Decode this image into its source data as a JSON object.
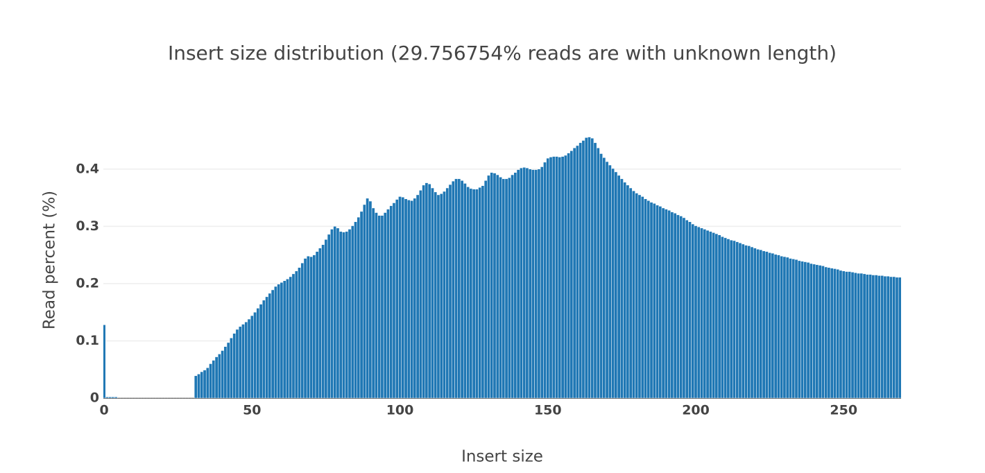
{
  "chart_data": {
    "type": "bar",
    "title": "Insert size distribution (29.756754% reads are with unknown length)",
    "x_label": "Insert size",
    "y_label": "Read percent (%)",
    "color": "#1f77b4",
    "grid": true,
    "xlim": [
      -0.25,
      269.4
    ],
    "ylim": [
      0,
      0.47
    ],
    "xticks": [
      0,
      50,
      100,
      150,
      200,
      250
    ],
    "yticks": [
      0,
      0.1,
      0.2,
      0.3,
      0.4
    ],
    "x": [
      0,
      1,
      2,
      3,
      4,
      5,
      6,
      7,
      8,
      9,
      10,
      11,
      12,
      13,
      14,
      15,
      16,
      17,
      18,
      19,
      20,
      21,
      22,
      23,
      24,
      25,
      26,
      27,
      28,
      29,
      30,
      31,
      32,
      33,
      34,
      35,
      36,
      37,
      38,
      39,
      40,
      41,
      42,
      43,
      44,
      45,
      46,
      47,
      48,
      49,
      50,
      51,
      52,
      53,
      54,
      55,
      56,
      57,
      58,
      59,
      60,
      61,
      62,
      63,
      64,
      65,
      66,
      67,
      68,
      69,
      70,
      71,
      72,
      73,
      74,
      75,
      76,
      77,
      78,
      79,
      80,
      81,
      82,
      83,
      84,
      85,
      86,
      87,
      88,
      89,
      90,
      91,
      92,
      93,
      94,
      95,
      96,
      97,
      98,
      99,
      100,
      101,
      102,
      103,
      104,
      105,
      106,
      107,
      108,
      109,
      110,
      111,
      112,
      113,
      114,
      115,
      116,
      117,
      118,
      119,
      120,
      121,
      122,
      123,
      124,
      125,
      126,
      127,
      128,
      129,
      130,
      131,
      132,
      133,
      134,
      135,
      136,
      137,
      138,
      139,
      140,
      141,
      142,
      143,
      144,
      145,
      146,
      147,
      148,
      149,
      150,
      151,
      152,
      153,
      154,
      155,
      156,
      157,
      158,
      159,
      160,
      161,
      162,
      163,
      164,
      165,
      166,
      167,
      168,
      169,
      170,
      171,
      172,
      173,
      174,
      175,
      176,
      177,
      178,
      179,
      180,
      181,
      182,
      183,
      184,
      185,
      186,
      187,
      188,
      189,
      190,
      191,
      192,
      193,
      194,
      195,
      196,
      197,
      198,
      199,
      200,
      201,
      202,
      203,
      204,
      205,
      206,
      207,
      208,
      209,
      210,
      211,
      212,
      213,
      214,
      215,
      216,
      217,
      218,
      219,
      220,
      221,
      222,
      223,
      224,
      225,
      226,
      227,
      228,
      229,
      230,
      231,
      232,
      233,
      234,
      235,
      236,
      237,
      238,
      239,
      240,
      241,
      242,
      243,
      244,
      245,
      246,
      247,
      248,
      249,
      250,
      251,
      252,
      253,
      254,
      255,
      256,
      257,
      258,
      259,
      260,
      261,
      262,
      263,
      264,
      265,
      266,
      267,
      268,
      269
    ],
    "values": [
      0.128,
      0.002,
      0.002,
      0.002,
      0.002,
      0.0005,
      0.0005,
      0.0005,
      0.0005,
      0.0005,
      0.0005,
      0.0005,
      0.0005,
      0.0005,
      0.0005,
      0.0005,
      0.0005,
      0.0005,
      0.0005,
      0.0005,
      0.0005,
      0.0005,
      0.0005,
      0.0005,
      0.0005,
      0.0005,
      0.0005,
      0.0005,
      0.0005,
      0.0005,
      0.0005,
      0.039,
      0.042,
      0.046,
      0.049,
      0.053,
      0.06,
      0.066,
      0.072,
      0.077,
      0.083,
      0.09,
      0.097,
      0.105,
      0.113,
      0.12,
      0.125,
      0.129,
      0.133,
      0.138,
      0.144,
      0.15,
      0.157,
      0.164,
      0.171,
      0.177,
      0.183,
      0.189,
      0.195,
      0.199,
      0.202,
      0.205,
      0.208,
      0.212,
      0.217,
      0.222,
      0.228,
      0.236,
      0.244,
      0.248,
      0.247,
      0.25,
      0.256,
      0.262,
      0.268,
      0.277,
      0.286,
      0.295,
      0.3,
      0.297,
      0.291,
      0.29,
      0.291,
      0.295,
      0.301,
      0.308,
      0.316,
      0.326,
      0.338,
      0.349,
      0.344,
      0.332,
      0.324,
      0.319,
      0.319,
      0.324,
      0.33,
      0.336,
      0.341,
      0.347,
      0.352,
      0.351,
      0.348,
      0.346,
      0.345,
      0.349,
      0.355,
      0.363,
      0.372,
      0.376,
      0.374,
      0.367,
      0.36,
      0.355,
      0.357,
      0.361,
      0.367,
      0.373,
      0.379,
      0.383,
      0.383,
      0.38,
      0.375,
      0.369,
      0.366,
      0.365,
      0.365,
      0.368,
      0.371,
      0.38,
      0.389,
      0.394,
      0.393,
      0.39,
      0.386,
      0.383,
      0.383,
      0.385,
      0.39,
      0.394,
      0.399,
      0.402,
      0.403,
      0.402,
      0.4,
      0.399,
      0.399,
      0.4,
      0.404,
      0.412,
      0.419,
      0.421,
      0.422,
      0.422,
      0.421,
      0.422,
      0.424,
      0.428,
      0.432,
      0.437,
      0.441,
      0.446,
      0.45,
      0.455,
      0.456,
      0.454,
      0.446,
      0.437,
      0.427,
      0.42,
      0.413,
      0.407,
      0.401,
      0.395,
      0.389,
      0.383,
      0.377,
      0.372,
      0.367,
      0.362,
      0.358,
      0.355,
      0.352,
      0.348,
      0.345,
      0.342,
      0.34,
      0.337,
      0.335,
      0.332,
      0.33,
      0.328,
      0.325,
      0.323,
      0.32,
      0.318,
      0.315,
      0.311,
      0.308,
      0.304,
      0.301,
      0.299,
      0.297,
      0.295,
      0.293,
      0.291,
      0.289,
      0.287,
      0.285,
      0.282,
      0.28,
      0.278,
      0.276,
      0.275,
      0.273,
      0.271,
      0.269,
      0.267,
      0.266,
      0.264,
      0.262,
      0.26,
      0.259,
      0.257,
      0.256,
      0.254,
      0.253,
      0.251,
      0.25,
      0.248,
      0.247,
      0.246,
      0.244,
      0.243,
      0.242,
      0.24,
      0.239,
      0.238,
      0.237,
      0.235,
      0.234,
      0.233,
      0.232,
      0.231,
      0.229,
      0.228,
      0.227,
      0.226,
      0.225,
      0.223,
      0.222,
      0.221,
      0.221,
      0.22,
      0.219,
      0.218,
      0.218,
      0.217,
      0.216,
      0.216,
      0.215,
      0.215,
      0.214,
      0.214,
      0.213,
      0.213,
      0.212,
      0.212,
      0.211,
      0.211
    ]
  }
}
